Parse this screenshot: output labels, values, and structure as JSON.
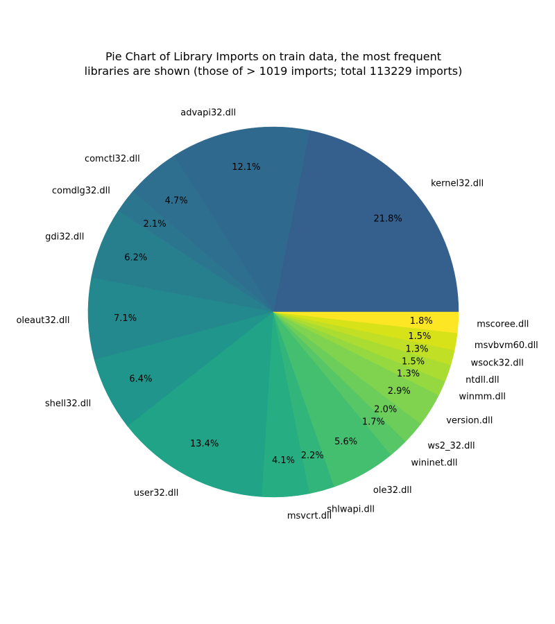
{
  "chart_data": {
    "type": "pie",
    "title_lines": [
      "Pie Chart of Library Imports on train data, the most frequent",
      "libraries are shown (those of > 1019 imports; total 113229 imports)"
    ],
    "slices": [
      {
        "label": "kernel32.dll",
        "pct_label": "21.8%",
        "value": 21.8,
        "color": "#355f8d"
      },
      {
        "label": "advapi32.dll",
        "pct_label": "12.1%",
        "value": 12.1,
        "color": "#30698e"
      },
      {
        "label": "comctl32.dll",
        "pct_label": "4.7%",
        "value": 4.7,
        "color": "#2e6e8e"
      },
      {
        "label": "comdlg32.dll",
        "pct_label": "2.1%",
        "value": 2.1,
        "color": "#2b758e"
      },
      {
        "label": "gdi32.dll",
        "pct_label": "6.2%",
        "value": 6.2,
        "color": "#277f8e"
      },
      {
        "label": "oleaut32.dll",
        "pct_label": "7.1%",
        "value": 7.1,
        "color": "#23898e"
      },
      {
        "label": "shell32.dll",
        "pct_label": "6.4%",
        "value": 6.4,
        "color": "#1f958b"
      },
      {
        "label": "user32.dll",
        "pct_label": "13.4%",
        "value": 13.4,
        "color": "#20a386"
      },
      {
        "label": "msvcrt.dll",
        "pct_label": "4.1%",
        "value": 4.1,
        "color": "#26ad81"
      },
      {
        "label": "shlwapi.dll",
        "pct_label": "2.2%",
        "value": 2.2,
        "color": "#31b57b"
      },
      {
        "label": "ole32.dll",
        "pct_label": "5.6%",
        "value": 5.6,
        "color": "#44bf70"
      },
      {
        "label": "wininet.dll",
        "pct_label": "1.7%",
        "value": 1.7,
        "color": "#56c667"
      },
      {
        "label": "ws2_32.dll",
        "pct_label": "2.0%",
        "value": 2.0,
        "color": "#6ccd5a"
      },
      {
        "label": "version.dll",
        "pct_label": "2.9%",
        "value": 2.9,
        "color": "#7fd34e"
      },
      {
        "label": "winmm.dll",
        "pct_label": "1.3%",
        "value": 1.3,
        "color": "#95d840"
      },
      {
        "label": "ntdll.dll",
        "pct_label": "1.5%",
        "value": 1.5,
        "color": "#aadc32"
      },
      {
        "label": "wsock32.dll",
        "pct_label": "1.3%",
        "value": 1.3,
        "color": "#c0df25"
      },
      {
        "label": "msvbvm60.dll",
        "pct_label": "1.5%",
        "value": 1.5,
        "color": "#d8e219"
      },
      {
        "label": "mscoree.dll",
        "pct_label": "1.8%",
        "value": 1.8,
        "color": "#fde725"
      }
    ],
    "start_angle_deg": 0,
    "direction": "counterclockwise",
    "legend": "none"
  }
}
